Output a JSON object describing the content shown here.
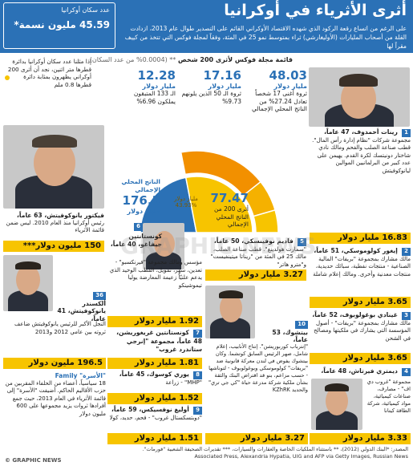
{
  "header": {
    "title": "أثرى الأثرياء في أوكرانيا",
    "subtitle": "على الرغم من اتساع رقعة الركود الذي شهده الاقتصاد الأوكراني القائم على التصدير طوال عام 2013، ازدادت القلة من أصحاب المليارات (الأوليغارشي) ثراء بمتوسط نمو 25 في المئة، وفقاً لمجلة فوكس التي تتخذ من كييف مقراً لها",
    "population_label": "عدد سكان أوكرانيا",
    "population_value": "45.59 مليون نسمة*"
  },
  "chart_heading": {
    "main": "قائمة مجلة فوكس لأثرى 200 شخص",
    "note": "** (0.0004% من عدد السكان)"
  },
  "colors": {
    "blue": "#2b71b6",
    "yellow": "#f7c400",
    "orange": "#f29000",
    "light_orange": "#f5b100"
  },
  "gauge": {
    "gdp_value": "176.3",
    "gdp_unit": "مليار دولار",
    "gdp_label": "الناتج المحلي الإجمالي",
    "top200_value": "77.47",
    "top200_unit": "مليار دولار",
    "top200_share": "43.93%",
    "top200_text": "أثرى 200 من الناتج المحلي الإجمالي",
    "top200_fraction": 0.4393,
    "groups": [
      {
        "value": "48.03",
        "unit": "مليار دولار",
        "text": "ثروة أغنى 17 شخصاً تعادل 27.24% من الناتج المحلي الإجمالي",
        "share": 0.2724
      },
      {
        "value": "17.16",
        "unit": "مليار دولار",
        "text": "ثروة الـ 50 الذين يلونهم 9.73%",
        "share": 0.0973
      },
      {
        "value": "12.28",
        "unit": "مليار دولار",
        "text": "الـ 133 المتبقون يملكون 6.96%",
        "share": 0.0696
      }
    ]
  },
  "note_box": "إذا مثلنا عدد سكان أوكرانيا بدائرة قطرها متر اثنين، نجد أن أثرى 200 أوكراني يظهرون بمثابة دائرة قطرها 0.8 ملم",
  "people_right": [
    {
      "rank": "1",
      "name": "رينات أحمدوف، 47 عاماً،",
      "text": "مجموعة شركات \"نظام إدارة رأس المال\". قطب صناعة الصلب والفحم ومالك نادي شاختار دونيتسك لكرة القدم. يهيمن على عدد كبير من البرلمانيين الموالين ليانوكوفيتش",
      "money": "16.83 مليار دولار"
    },
    {
      "rank": "2",
      "name": "إيغور كولوموسكي، 51 عاماً،",
      "text": "مالك مشارك بمجموعة \"بريفات\" المالية الصناعية - منتجات نفطية، سبائك حديدية، منتجات معدنية وأخرى. ومالك إعلام شاملة",
      "money": "3.65 مليار دولار"
    },
    {
      "rank": "3",
      "name": "غينادي بوغولوبوف، 52 عاماً،",
      "text": "مالك مشارك بمجموعة \"بريفات\" - أصول المؤسسة التي يشارك في ملكيتها ومصالح في الشحن",
      "money": "3.65 مليار دولار"
    },
    {
      "rank": "4",
      "name": "ديمتري فيرتاش، 48 عاماً،",
      "text": "مجموعة \"غروب دي اف\" - مصارف، صناعات كيميائية، مواد كيميائية، شركة الطاقة كيتانا",
      "money": "3.33 مليار دولار"
    }
  ],
  "people_middle": [
    {
      "rank": "5",
      "name": "فاديم نوفينسكي، 50 عاماً،",
      "text": "\"سمارت هولدينغ\". قطب صناعة الصلب، مالك 25 في المئة من \"ريناتا ميتينفيست\" و\"مترو هاتر\"",
      "money": "3.27 مليار دولار"
    },
    {
      "rank": "6",
      "name": "كونستانتين جيفاغو، 40 عاماً،",
      "text": "مؤسس ومالك مجموعة \"فيرنكسبو\" - تعدين، سهر، تمويل، القطب الوحيد الذي يدعم علنيّاً زعيمة المعارضة يوليا تيموشينكو",
      "money": "1.92 مليار دولار"
    },
    {
      "rank": "7",
      "name": "كونستانتين غريغوريشن، 48 عاماً، مجموعة \"إنرجي ستاندرد غروب\"",
      "text": "",
      "money": "1.81 مليار دولار"
    },
    {
      "rank": "8",
      "name": "يوري كوسوك، 45 عاماً،",
      "text": "\"MHP\" - زراعة",
      "money": "1.52 مليار دولار"
    },
    {
      "rank": "9",
      "name": "أوليغ نوفسيكس، 59 عاماً،",
      "text": "\"دوبتسكستال غروب\" - فحم، حديد، كولا",
      "money": "1.51 مليار دولار"
    },
    {
      "rank": "10",
      "name": "بيتشوك، 53 عاماً،",
      "text": "\"إنترباب كوربوريشن\". إنتاج الأنابيب، إعلام شامل، صهر الرئيس السابق كوتشما. وكان بيتشوك يفوض في لندن معركة قانونية ضد \"بريفات\" كولوموسكي وبوغولوبوف - لتوناشها - حسب مزاعم، بنو قد اقتراض البنك والثقة بشأن ملكية شركة مدرعة حياة \"كي جي تري\" والحديد KZhRK",
      "money": "3.27 مليار دولار"
    }
  ],
  "people_left": [
    {
      "rank": "",
      "name": "فيكتور يانوكوفيتش، 63 عاماً،",
      "text": "رئيس أوكرانيا منذ العام 2010. ليس ضمن قائمة الأثرياء",
      "money": "150 مليون دولار***"
    },
    {
      "rank": "36",
      "name": "ألكسندر يانوكوفيتش، 41 عاماً،",
      "text": "النجل الأكبر للرئيس يانوكوفيتش ضاعف ثروته بين عامي 2012 و2013",
      "money": "196.5 مليون دولار"
    },
    {
      "rank": "",
      "name": "\"الأسرة\" Family",
      "text": "18 سياسياً، أعضاء من الحلفاء المقربين من حزب الأقاليم الحاكم. أضيفت \"الأسرة\" إلى قائمة الأثرياء في العام 2013، حيث جمع أفرادها ثروات يزيد مجموعها على 600 مليون دولار",
      "money": ""
    }
  ],
  "footer": {
    "source": "المصدر: *البنك الدولي (2012)، ** باستثناء الملكيات الخاصة والعقارات والسيارات، *** تقديرات الصحيفة الشعبية \"فورمات\".",
    "credits": "Associated Press, Alexandria Hypatia, UIG and AFP via Getty Images, Russian News",
    "logo": "© GRAPHIC NEWS"
  },
  "watermark": "GRAPHIC NEWS"
}
